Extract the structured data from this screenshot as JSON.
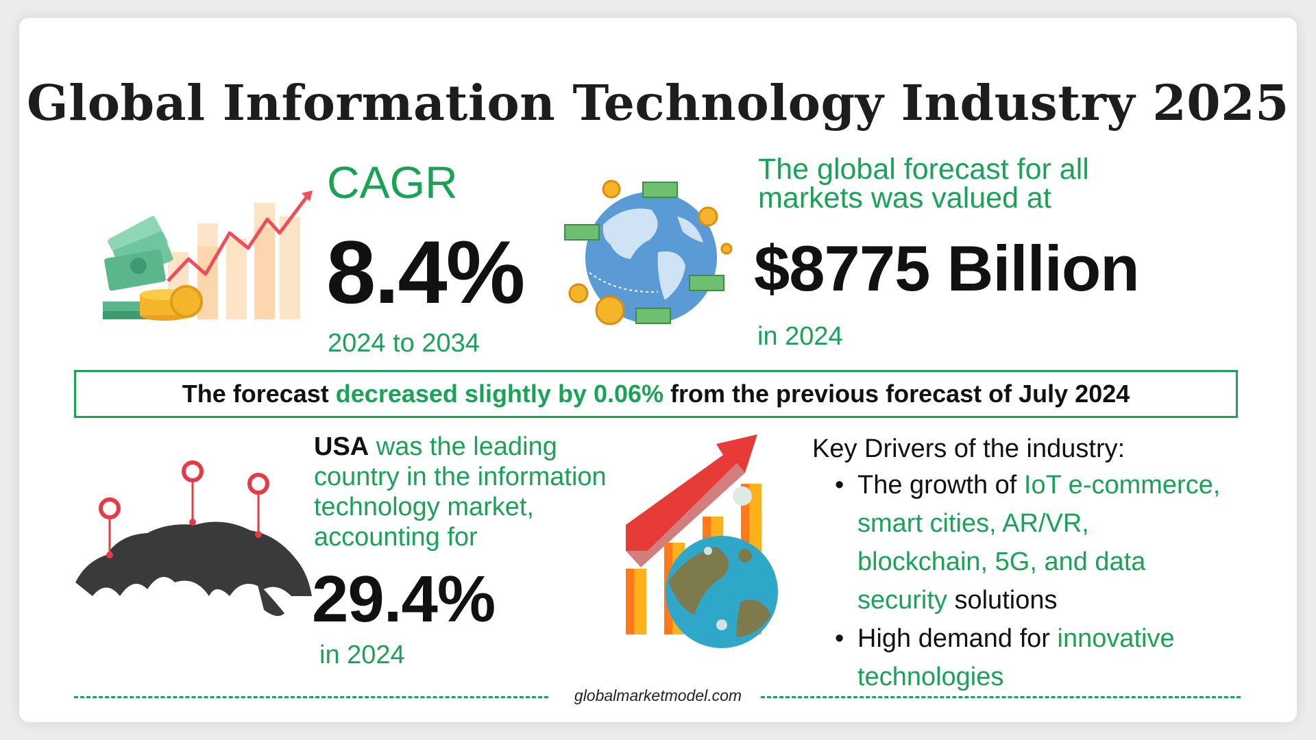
{
  "title": "Global Information Technology Industry 2025",
  "cagr": {
    "label": "CAGR",
    "value": "8.4%",
    "period": "2024 to 2034"
  },
  "forecast": {
    "intro_line1": "The global forecast for all",
    "intro_line2": "markets was valued at",
    "value": "$8775 Billion",
    "year": "in 2024"
  },
  "banner": {
    "part1": "The forecast ",
    "part2": "decreased slightly by 0.06%",
    "part3": " from the previous forecast of July 2024"
  },
  "usa": {
    "country": "USA",
    "line1": " was the leading",
    "line2": "country in the information",
    "line3": "technology market,",
    "line4": "accounting for",
    "value": "29.4%",
    "year": "in 2024"
  },
  "drivers": {
    "title": "Key Drivers of the industry:",
    "item1_prefix": "The growth of ",
    "item1_green_line1": "IoT e-commerce,",
    "item1_green_line2": "smart cities, AR/VR,",
    "item1_green_line3": "blockchain, 5G, and data",
    "item1_green_line4": "security",
    "item1_suffix": " solutions",
    "item2_prefix": "High demand for ",
    "item2_green_line1": "innovative",
    "item2_green_line2": "technologies"
  },
  "footer": "globalmarketmodel.com",
  "icons": [
    "money-growth-chart-icon",
    "globe-money-icon",
    "world-map-pins-icon",
    "growth-globe-chart-icon"
  ],
  "colors": {
    "accent": "#1aa257",
    "text": "#111111",
    "arrow": "#e63b47"
  }
}
